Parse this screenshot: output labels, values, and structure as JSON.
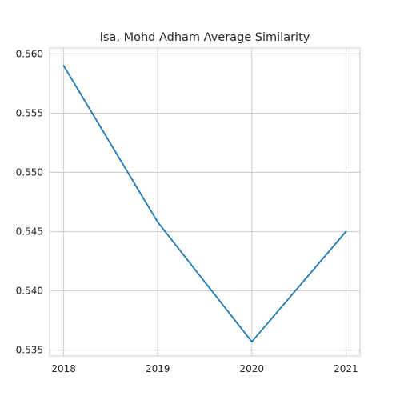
{
  "chart_data": {
    "type": "line",
    "title": "Isa, Mohd Adham Average Similarity",
    "xlabel": "",
    "ylabel": "",
    "x": [
      2018,
      2019,
      2020,
      2021
    ],
    "xticks": [
      "2018",
      "2019",
      "2020",
      "2021"
    ],
    "yticks": [
      "0.535",
      "0.540",
      "0.545",
      "0.550",
      "0.555",
      "0.560"
    ],
    "ylim": [
      0.5345,
      0.5605
    ],
    "xlim": [
      2017.85,
      2021.15
    ],
    "grid": true,
    "series": [
      {
        "values": [
          0.559,
          0.5458,
          0.5357,
          0.545
        ],
        "color": "#1f77b4"
      }
    ]
  }
}
